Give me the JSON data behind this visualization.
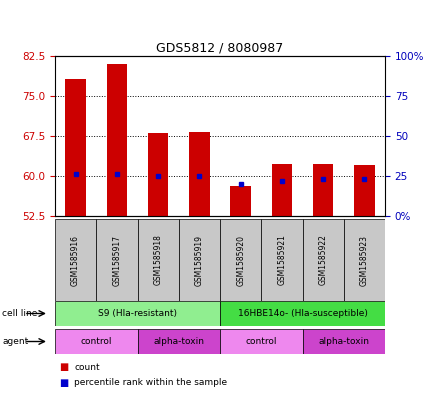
{
  "title": "GDS5812 / 8080987",
  "samples": [
    "GSM1585916",
    "GSM1585917",
    "GSM1585918",
    "GSM1585919",
    "GSM1585920",
    "GSM1585921",
    "GSM1585922",
    "GSM1585923"
  ],
  "red_bars": [
    78.2,
    81.0,
    68.1,
    68.3,
    58.1,
    62.2,
    62.3,
    62.1
  ],
  "blue_percentiles": [
    26,
    26,
    25,
    25,
    20,
    22,
    23,
    23
  ],
  "ylim_left": [
    52.5,
    82.5
  ],
  "ylim_right": [
    0,
    100
  ],
  "yticks_left": [
    52.5,
    60.0,
    67.5,
    75.0,
    82.5
  ],
  "yticks_right": [
    0,
    25,
    50,
    75,
    100
  ],
  "cell_line_groups": [
    {
      "label": "S9 (Hla-resistant)",
      "start": 0,
      "end": 4,
      "color": "#90EE90"
    },
    {
      "label": "16HBE14o- (Hla-susceptible)",
      "start": 4,
      "end": 8,
      "color": "#44DD44"
    }
  ],
  "agent_groups": [
    {
      "label": "control",
      "start": 0,
      "end": 2,
      "color": "#EE88EE"
    },
    {
      "label": "alpha-toxin",
      "start": 2,
      "end": 4,
      "color": "#CC44CC"
    },
    {
      "label": "control",
      "start": 4,
      "end": 6,
      "color": "#EE88EE"
    },
    {
      "label": "alpha-toxin",
      "start": 6,
      "end": 8,
      "color": "#CC44CC"
    }
  ],
  "bar_width": 0.5,
  "bar_color": "#CC0000",
  "dot_color": "#0000CC",
  "background_color": "#FFFFFF",
  "left_tick_color": "#CC0000",
  "right_tick_color": "#0000BB",
  "sample_box_color": "#C8C8C8"
}
